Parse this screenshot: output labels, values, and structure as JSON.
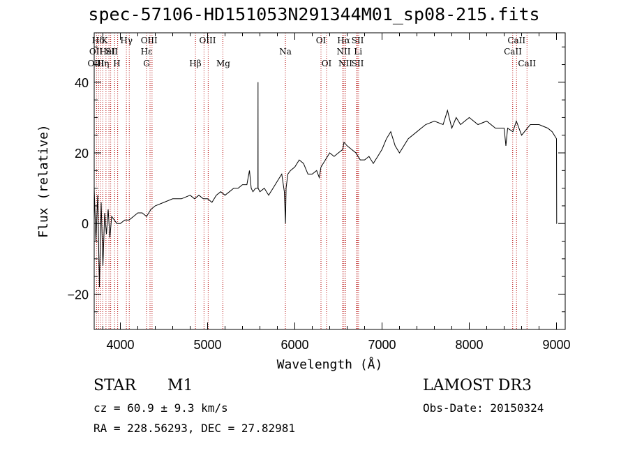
{
  "chart_data": {
    "type": "line",
    "title": "spec-57106-HD151053N291344M01_sp08-215.fits",
    "xlabel": "Wavelength (Å)",
    "ylabel": "Flux (relative)",
    "xlim": [
      3700,
      9100
    ],
    "ylim": [
      -30,
      54
    ],
    "x_ticks": [
      4000,
      5000,
      6000,
      7000,
      8000,
      9000
    ],
    "y_ticks": [
      -20,
      0,
      20,
      40
    ],
    "series": [
      {
        "name": "flux",
        "x": [
          3700,
          3720,
          3740,
          3760,
          3780,
          3800,
          3820,
          3840,
          3860,
          3880,
          3900,
          3930,
          3960,
          4000,
          4050,
          4100,
          4150,
          4200,
          4250,
          4300,
          4350,
          4400,
          4500,
          4600,
          4700,
          4800,
          4850,
          4900,
          4950,
          5000,
          5050,
          5100,
          5150,
          5200,
          5250,
          5300,
          5350,
          5400,
          5450,
          5480,
          5500,
          5520,
          5550,
          5577,
          5578,
          5579,
          5600,
          5650,
          5700,
          5750,
          5800,
          5850,
          5880,
          5893,
          5900,
          5920,
          5950,
          6000,
          6050,
          6100,
          6150,
          6200,
          6250,
          6280,
          6300,
          6350,
          6400,
          6450,
          6500,
          6550,
          6563,
          6600,
          6650,
          6700,
          6750,
          6800,
          6850,
          6900,
          6950,
          7000,
          7050,
          7100,
          7150,
          7200,
          7300,
          7400,
          7500,
          7600,
          7700,
          7750,
          7800,
          7850,
          7900,
          8000,
          8100,
          8200,
          8300,
          8400,
          8420,
          8440,
          8500,
          8540,
          8600,
          8700,
          8800,
          8900,
          8950,
          9000,
          9002,
          9010
        ],
        "y": [
          10,
          -5,
          8,
          -18,
          6,
          -12,
          3,
          -3,
          4,
          -4,
          2,
          1,
          0,
          0,
          1,
          1,
          2,
          3,
          3,
          2,
          4,
          5,
          6,
          7,
          7,
          8,
          7,
          8,
          7,
          7,
          6,
          8,
          9,
          8,
          9,
          10,
          10,
          11,
          11,
          15,
          10,
          9,
          10,
          10,
          40,
          10,
          9,
          10,
          8,
          10,
          12,
          14,
          9,
          0,
          10,
          14,
          15,
          16,
          18,
          17,
          14,
          14,
          15,
          13,
          16,
          18,
          20,
          19,
          20,
          21,
          23,
          22,
          21,
          20,
          18,
          18,
          19,
          17,
          19,
          21,
          24,
          26,
          22,
          20,
          24,
          26,
          28,
          29,
          28,
          32,
          27,
          30,
          28,
          30,
          28,
          29,
          27,
          27,
          22,
          27,
          26,
          29,
          25,
          28,
          28,
          27,
          26,
          24,
          0,
          0
        ]
      }
    ],
    "line_annotations": {
      "top_labels": [
        "Hδ",
        "OII",
        "OIII",
        "K",
        "HeI",
        "SII",
        "H",
        "Hγ",
        "Hε",
        "Hη",
        "G",
        "Hβ",
        "OIII",
        "OIII",
        "Mg",
        "Na",
        "OI",
        "OI",
        "Hα",
        "NII",
        "NII",
        "SII",
        "SII",
        "Li",
        "CaII",
        "CaII",
        "CaII"
      ],
      "wavelengths": [
        3727,
        3750,
        3771,
        3798,
        3835,
        3869,
        3889,
        3934,
        3969,
        4069,
        4102,
        4300,
        4340,
        4363,
        4861,
        4959,
        5007,
        5175,
        5892,
        6300,
        6364,
        6548,
        6563,
        6583,
        6708,
        6717,
        6731,
        8498,
        8542,
        8662
      ]
    }
  },
  "footer": {
    "object_class": "STAR",
    "subclass": "M1",
    "survey": "LAMOST DR3",
    "redshift": "cz = 60.9 ± 9.3 km/s",
    "obs_date": "Obs-Date: 20150324",
    "coords": "RA = 228.56293, DEC =  27.82981"
  }
}
